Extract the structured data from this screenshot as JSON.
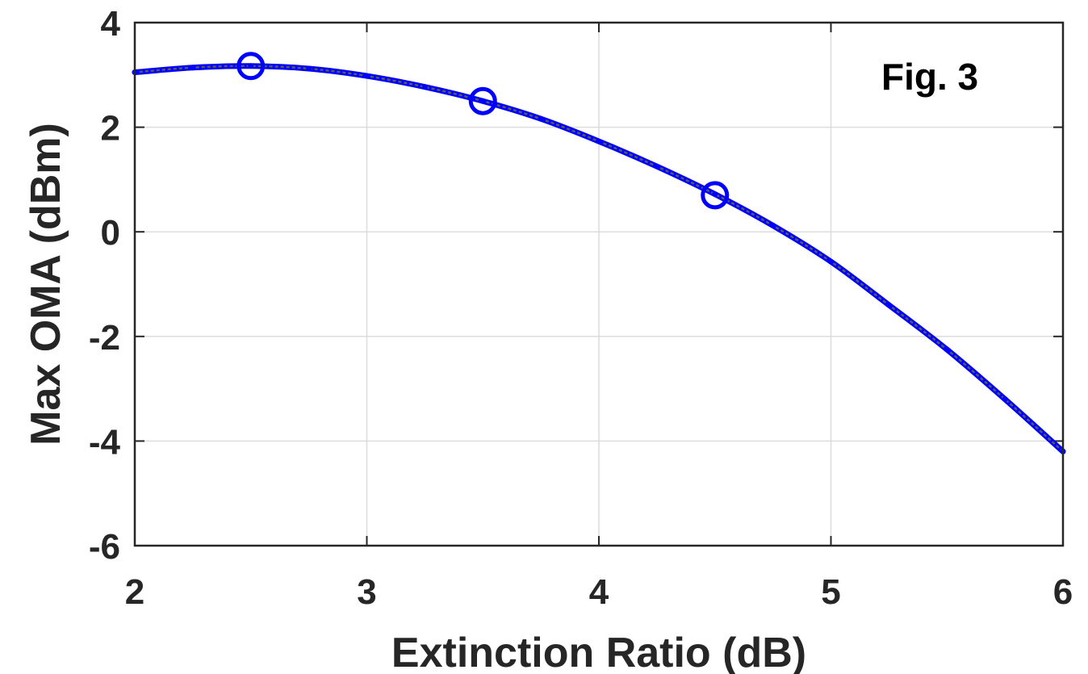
{
  "chart_data": {
    "type": "line",
    "xlabel": "Extinction Ratio (dB)",
    "ylabel": "Max OMA (dBm)",
    "annotation": "Fig. 3",
    "xlim": [
      2,
      6
    ],
    "ylim": [
      -6,
      4
    ],
    "x_ticks": [
      "2",
      "3",
      "4",
      "5",
      "6"
    ],
    "y_ticks": [
      "4",
      "2",
      "0",
      "-2",
      "-4",
      "-6"
    ],
    "grid": true,
    "line_color": "#0000ff",
    "dot_color": "#595959",
    "series": [
      {
        "style": "solid-dotted-line",
        "x": [
          2.0,
          2.25,
          2.5,
          2.75,
          3.0,
          3.25,
          3.5,
          3.75,
          4.0,
          4.25,
          4.5,
          4.75,
          5.0,
          5.25,
          5.5,
          5.75,
          6.0
        ],
        "y": [
          3.05,
          3.14,
          3.17,
          3.12,
          2.98,
          2.77,
          2.5,
          2.16,
          1.73,
          1.25,
          0.72,
          0.12,
          -0.57,
          -1.4,
          -2.25,
          -3.2,
          -4.2
        ]
      },
      {
        "style": "open-circle-markers",
        "x": [
          2.5,
          3.5,
          4.5
        ],
        "y": [
          3.17,
          2.5,
          0.7
        ]
      }
    ]
  }
}
